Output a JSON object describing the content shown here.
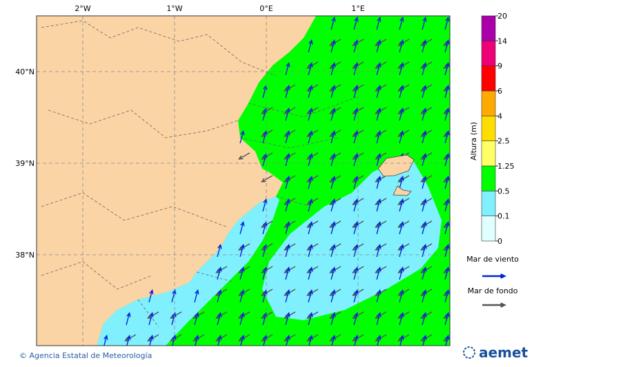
{
  "map": {
    "lon_labels": [
      "2°W",
      "1°W",
      "0°E",
      "1°E"
    ],
    "lat_labels": [
      "40°N",
      "39°N",
      "38°N"
    ]
  },
  "colorbar": {
    "label": "Altura (m)",
    "levels": [
      0,
      0.1,
      0.5,
      1.25,
      2.5,
      4,
      6,
      9,
      14,
      20
    ],
    "colors": [
      "#e0ffff",
      "#80f0ff",
      "#00ff00",
      "#ffff66",
      "#ffdd00",
      "#ffaa00",
      "#ff0000",
      "#ee0077",
      "#aa00aa"
    ]
  },
  "legend": [
    {
      "name": "Mar de viento",
      "color": "#0022dd"
    },
    {
      "name": "Mar de fondo",
      "color": "#555555"
    }
  ],
  "footer": {
    "credit": "© Agencia Estatal de Meteorología",
    "logo": "aemet"
  }
}
